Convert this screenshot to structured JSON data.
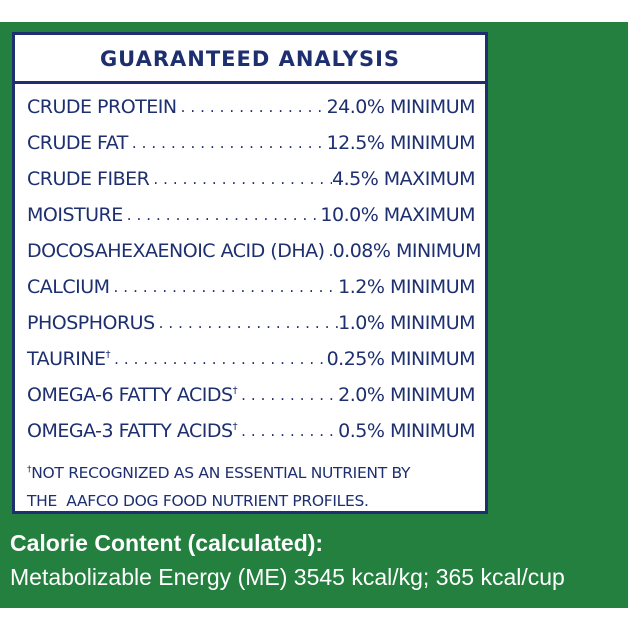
{
  "label": {
    "title": "GUARANTEED ANALYSIS",
    "rows": [
      {
        "name": "CRUDE PROTEIN",
        "mark": "",
        "value": "24.0% MINIMUM"
      },
      {
        "name": "CRUDE FAT",
        "mark": "",
        "value": "12.5% MINIMUM"
      },
      {
        "name": "CRUDE FIBER",
        "mark": "",
        "value": "4.5% MAXIMUM"
      },
      {
        "name": "MOISTURE",
        "mark": "",
        "value": "10.0% MAXIMUM"
      },
      {
        "name": "DOCOSAHEXAENOIC ACID (DHA)",
        "mark": "",
        "value": "0.08% MINIMUM"
      },
      {
        "name": "CALCIUM",
        "mark": "",
        "value": "1.2% MINIMUM"
      },
      {
        "name": "PHOSPHORUS",
        "mark": "",
        "value": "1.0% MINIMUM"
      },
      {
        "name": "TAURINE",
        "mark": "†",
        "value": "0.25% MINIMUM"
      },
      {
        "name": "OMEGA-6 FATTY ACIDS",
        "mark": "†",
        "value": "2.0% MINIMUM"
      },
      {
        "name": "OMEGA-3 FATTY ACIDS",
        "mark": "†",
        "value": "0.5% MINIMUM"
      }
    ],
    "footnote_mark": "†",
    "footnote_line1": "NOT RECOGNIZED AS AN ESSENTIAL NUTRIENT BY",
    "footnote_line2": "THE  AAFCO DOG FOOD NUTRIENT PROFILES."
  },
  "calorie": {
    "title": "Calorie Content (calculated):",
    "text": "Metabolizable Energy (ME) 3545 kcal/kg; 365 kcal/cup"
  },
  "colors": {
    "panel_green": "#23803e",
    "label_navy": "#1d2f6f",
    "text_white": "#ffffff"
  }
}
